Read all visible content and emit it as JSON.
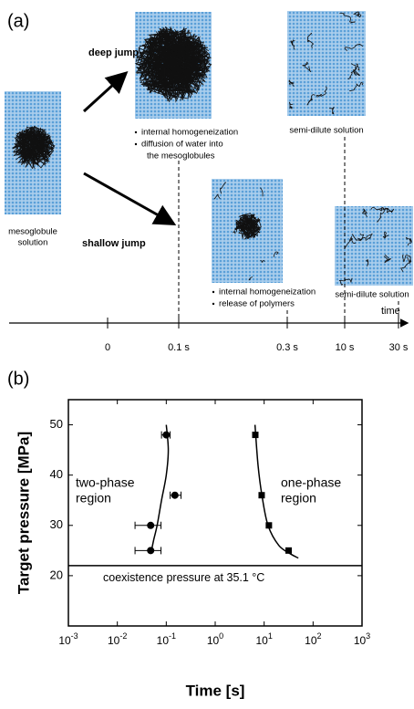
{
  "panel_a": {
    "label": "(a)",
    "deep_jump": "deep jump",
    "shallow_jump": "shallow jump",
    "start_caption": [
      "mesoglobule",
      "solution"
    ],
    "deep_notes": [
      "internal homogeneization",
      "diffusion of water into",
      "the mesoglobules"
    ],
    "shallow_notes": [
      "internal homogeneization",
      "release of polymers"
    ],
    "semi_dilute": [
      "semi-dilute solution",
      "semi-dilute solution"
    ],
    "timeline": {
      "label": "time",
      "ticks": [
        "0",
        "0.1 s",
        "0.3 s",
        "10 s",
        "30 s"
      ]
    }
  },
  "chart_data": {
    "type": "scatter",
    "panel_label": "(b)",
    "xlabel": "Time [s]",
    "ylabel": "Target pressure [MPa]",
    "xscale": "log",
    "xlim": [
      0.001,
      1000
    ],
    "xticks": [
      {
        "value": 0.001,
        "label": "10-3"
      },
      {
        "value": 0.01,
        "label": "10-2"
      },
      {
        "value": 0.1,
        "label": "10-1"
      },
      {
        "value": 1,
        "label": "100"
      },
      {
        "value": 10,
        "label": "101"
      },
      {
        "value": 100,
        "label": "102"
      },
      {
        "value": 1000,
        "label": "103"
      }
    ],
    "ylim": [
      10,
      55
    ],
    "yticks": [
      20,
      30,
      40,
      50
    ],
    "series": [
      {
        "marker": "circle",
        "color": "#000000",
        "x": [
          0.1,
          0.15,
          0.048,
          0.048
        ],
        "values": [
          48,
          36,
          30,
          25
        ],
        "xerr_minus": [
          0.02,
          0.03,
          0.025,
          0.025
        ],
        "xerr_plus": [
          0.02,
          0.05,
          0.03,
          0.03
        ]
      },
      {
        "marker": "square",
        "color": "#000000",
        "x": [
          6.6,
          8.9,
          12.5,
          31.6
        ],
        "values": [
          48,
          36,
          30,
          25
        ]
      }
    ],
    "fits": [
      {
        "x": [
          0.1,
          0.11,
          0.1,
          0.08,
          0.065,
          0.055,
          0.05
        ],
        "values": [
          50,
          45,
          40,
          35,
          30,
          27,
          25
        ]
      },
      {
        "x": [
          6.5,
          7.5,
          9,
          12,
          20,
          35,
          50
        ],
        "values": [
          50,
          42,
          36,
          30,
          26,
          24.3,
          23.5
        ]
      }
    ],
    "hline": {
      "value": 22,
      "label": "coexistence pressure at 35.1 °C"
    },
    "annotations": [
      [
        "two-phase",
        "region"
      ],
      [
        "one-phase",
        "region"
      ]
    ]
  }
}
